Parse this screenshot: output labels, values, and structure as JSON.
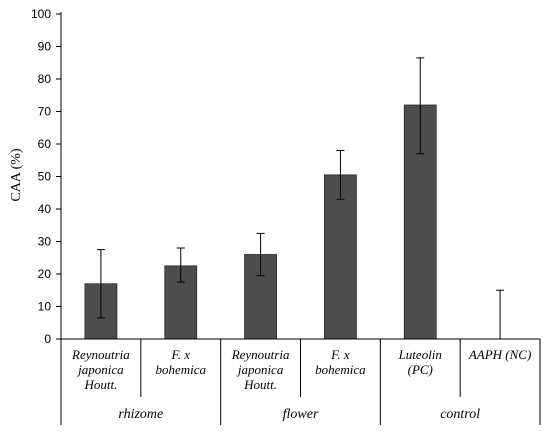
{
  "chart_data": {
    "type": "bar",
    "ylabel": "CAA (%)",
    "ylim": [
      0,
      100
    ],
    "yticks": [
      0,
      10,
      20,
      30,
      40,
      50,
      60,
      70,
      80,
      90,
      100
    ],
    "categories": [
      [
        "Reynoutria",
        "japonica",
        "Houtt."
      ],
      [
        "F. x",
        "bohemica"
      ],
      [
        "Reynoutria",
        "japonica",
        "Houtt."
      ],
      [
        "F. x",
        "bohemica"
      ],
      [
        "Luteolin",
        "(PC)"
      ],
      [
        "AAPH (NC)"
      ]
    ],
    "groups": [
      {
        "label": "rhizome",
        "span": 2
      },
      {
        "label": "flower",
        "span": 2
      },
      {
        "label": "control",
        "span": 2
      }
    ],
    "values": [
      17,
      22.5,
      26,
      50.5,
      72,
      0
    ],
    "error_low": [
      6.5,
      17.5,
      19.5,
      43,
      57,
      0
    ],
    "error_high": [
      27.5,
      28,
      32.5,
      58,
      86.5,
      15
    ],
    "bar_color": "#4d4d4d",
    "grid": false
  }
}
